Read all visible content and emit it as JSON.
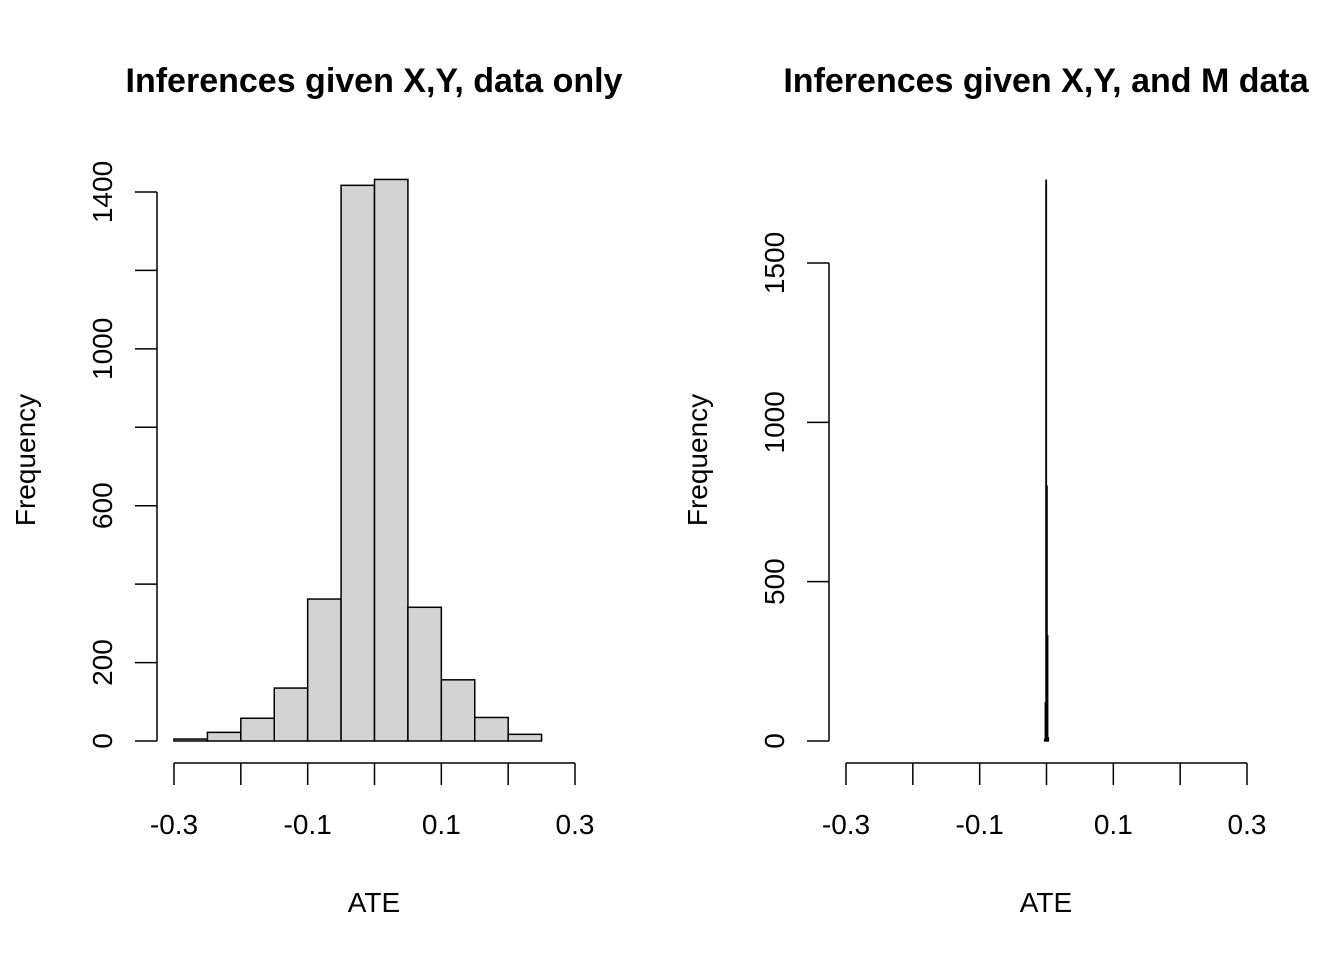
{
  "chart_data": [
    {
      "type": "bar",
      "title": "Inferences given X,Y, data only",
      "xlabel": "ATE",
      "ylabel": "Frequency",
      "bin_edges": [
        -0.3,
        -0.25,
        -0.2,
        -0.15,
        -0.1,
        -0.05,
        0.0,
        0.05,
        0.1,
        0.15,
        0.2,
        0.25
      ],
      "values": [
        5,
        22,
        58,
        135,
        362,
        1417,
        1432,
        341,
        156,
        60,
        17
      ],
      "xlim": [
        -0.3,
        0.3
      ],
      "ylim": [
        0,
        1400
      ],
      "x_ticks": [
        "-0.3",
        "-0.2",
        "-0.1",
        "0.0",
        "0.1",
        "0.2",
        "0.3"
      ],
      "x_tick_labels_shown": [
        "-0.3",
        "-0.1",
        "0.1",
        "0.3"
      ],
      "y_ticks": [
        "0",
        "200",
        "400",
        "600",
        "800",
        "1000",
        "1200",
        "1400"
      ],
      "y_tick_labels_shown": [
        "0",
        "200",
        "600",
        "1000",
        "1400"
      ],
      "bar_fill": "#d3d3d3",
      "grid": false
    },
    {
      "type": "bar",
      "title": "Inferences given X,Y, and M data",
      "xlabel": "ATE",
      "ylabel": "Frequency",
      "bin_edges": [
        -0.003,
        -0.002,
        -0.001,
        0.0,
        0.001,
        0.002,
        0.003
      ],
      "values": [
        5,
        120,
        1760,
        800,
        330,
        10
      ],
      "xlim": [
        -0.3,
        0.3
      ],
      "ylim": [
        0,
        1500
      ],
      "x_ticks": [
        "-0.3",
        "-0.2",
        "-0.1",
        "0.0",
        "0.1",
        "0.2",
        "0.3"
      ],
      "x_tick_labels_shown": [
        "-0.3",
        "-0.1",
        "0.1",
        "0.3"
      ],
      "y_ticks": [
        "0",
        "500",
        "1000",
        "1500"
      ],
      "y_tick_labels_shown": [
        "0",
        "500",
        "1000",
        "1500"
      ],
      "bar_fill": "#d3d3d3",
      "grid": false
    }
  ]
}
